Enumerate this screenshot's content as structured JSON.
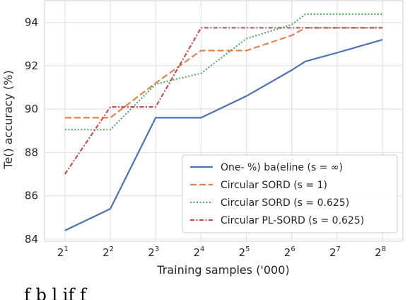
{
  "chart_data": {
    "type": "line",
    "xlabel": "Training samples ('000)",
    "ylabel": "Te() accuracy (%)",
    "x_scale": "log2",
    "x_ticks": [
      {
        "base": "2",
        "exp": "1"
      },
      {
        "base": "2",
        "exp": "2"
      },
      {
        "base": "2",
        "exp": "3"
      },
      {
        "base": "2",
        "exp": "4"
      },
      {
        "base": "2",
        "exp": "5"
      },
      {
        "base": "2",
        "exp": "6"
      },
      {
        "base": "2",
        "exp": "7"
      },
      {
        "base": "2",
        "exp": "8"
      }
    ],
    "x_exponent_range": [
      0.55,
      8.45
    ],
    "ylim": [
      83.9,
      95.0
    ],
    "y_ticks": [
      "84",
      "86",
      "88",
      "90",
      "92",
      "94"
    ],
    "grid": true,
    "legend_position": "bottom-right",
    "series": [
      {
        "name": "One- %) ba(eline (s = ∞)",
        "color": "#4c72b0",
        "dash": "solid",
        "x_exp": [
          1,
          2,
          3,
          4,
          5,
          6,
          6.3,
          7,
          8
        ],
        "y": [
          84.4,
          85.4,
          89.6,
          89.6,
          90.6,
          91.8,
          92.2,
          92.6,
          93.2
        ]
      },
      {
        "name": "Circular SORD (s = 1)",
        "color": "#dd8452",
        "dash": "dashed",
        "x_exp": [
          1,
          2,
          3,
          4,
          5,
          6,
          6.3,
          7,
          8
        ],
        "y": [
          89.6,
          89.6,
          91.2,
          92.7,
          92.7,
          93.4,
          93.75,
          93.75,
          93.75
        ]
      },
      {
        "name": "Circular SORD (s = 0.625)",
        "color": "#55a868",
        "dash": "dotted",
        "x_exp": [
          1,
          2,
          3,
          4,
          5,
          6,
          6.3,
          7,
          8
        ],
        "y": [
          89.05,
          89.05,
          91.15,
          91.65,
          93.25,
          93.9,
          94.38,
          94.38,
          94.38
        ]
      },
      {
        "name": "Circular PL-SORD (s = 0.625)",
        "color": "#c44e52",
        "dash": "dashdot",
        "x_exp": [
          1,
          2,
          3,
          4,
          5,
          6,
          6.3,
          7,
          8
        ],
        "y": [
          87.0,
          90.1,
          90.1,
          93.75,
          93.75,
          93.75,
          93.75,
          93.75,
          93.75
        ]
      }
    ]
  },
  "caption_fragment": "f                   b        l      if                                    f"
}
